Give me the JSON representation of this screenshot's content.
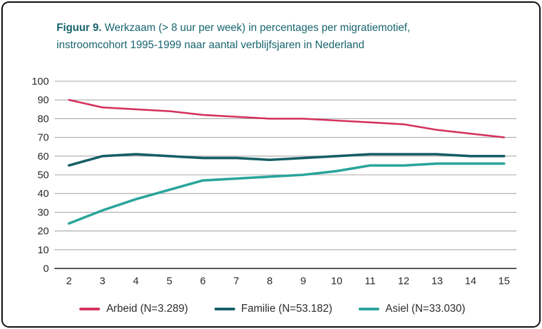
{
  "header": {
    "figure_label": "Figuur 9.",
    "title_rest": " Werkzaam (> 8 uur per week) in percentages per migratiemotief, instroomcohort 1995-1999 naar aantal verblijfsjaren in Nederland"
  },
  "chart_data": {
    "type": "line",
    "x": [
      2,
      3,
      4,
      5,
      6,
      7,
      8,
      9,
      10,
      11,
      12,
      13,
      14,
      15
    ],
    "xlabel": "",
    "ylabel": "",
    "ylim": [
      0,
      100
    ],
    "yticks": [
      0,
      10,
      20,
      30,
      40,
      50,
      60,
      70,
      80,
      90,
      100
    ],
    "grid": true,
    "legend_position": "bottom",
    "series": [
      {
        "name": "Arbeid",
        "legend": "Arbeid (N=3.289)",
        "color": "#d5315d",
        "stroke_width": 2.6,
        "values": [
          90,
          86,
          85,
          84,
          82,
          81,
          80,
          80,
          79,
          78,
          77,
          74,
          72,
          70
        ]
      },
      {
        "name": "Familie",
        "legend": "Familie (N=53.182)",
        "color": "#155f66",
        "stroke_width": 3.6,
        "values": [
          55,
          60,
          61,
          60,
          59,
          59,
          58,
          59,
          60,
          61,
          61,
          61,
          60,
          60
        ]
      },
      {
        "name": "Asiel",
        "legend": "Asiel (N=33.030)",
        "color": "#2aa49c",
        "stroke_width": 3.6,
        "values": [
          24,
          31,
          37,
          42,
          47,
          48,
          49,
          50,
          52,
          55,
          55,
          56,
          56,
          56
        ]
      }
    ]
  },
  "colors": {
    "title": "#17646e",
    "gridline": "#a9a9a9",
    "axis_line": "#3c3c3c",
    "tick_text": "#2b2b2b",
    "border": "#0a0a0a",
    "background": "#ffffff"
  }
}
